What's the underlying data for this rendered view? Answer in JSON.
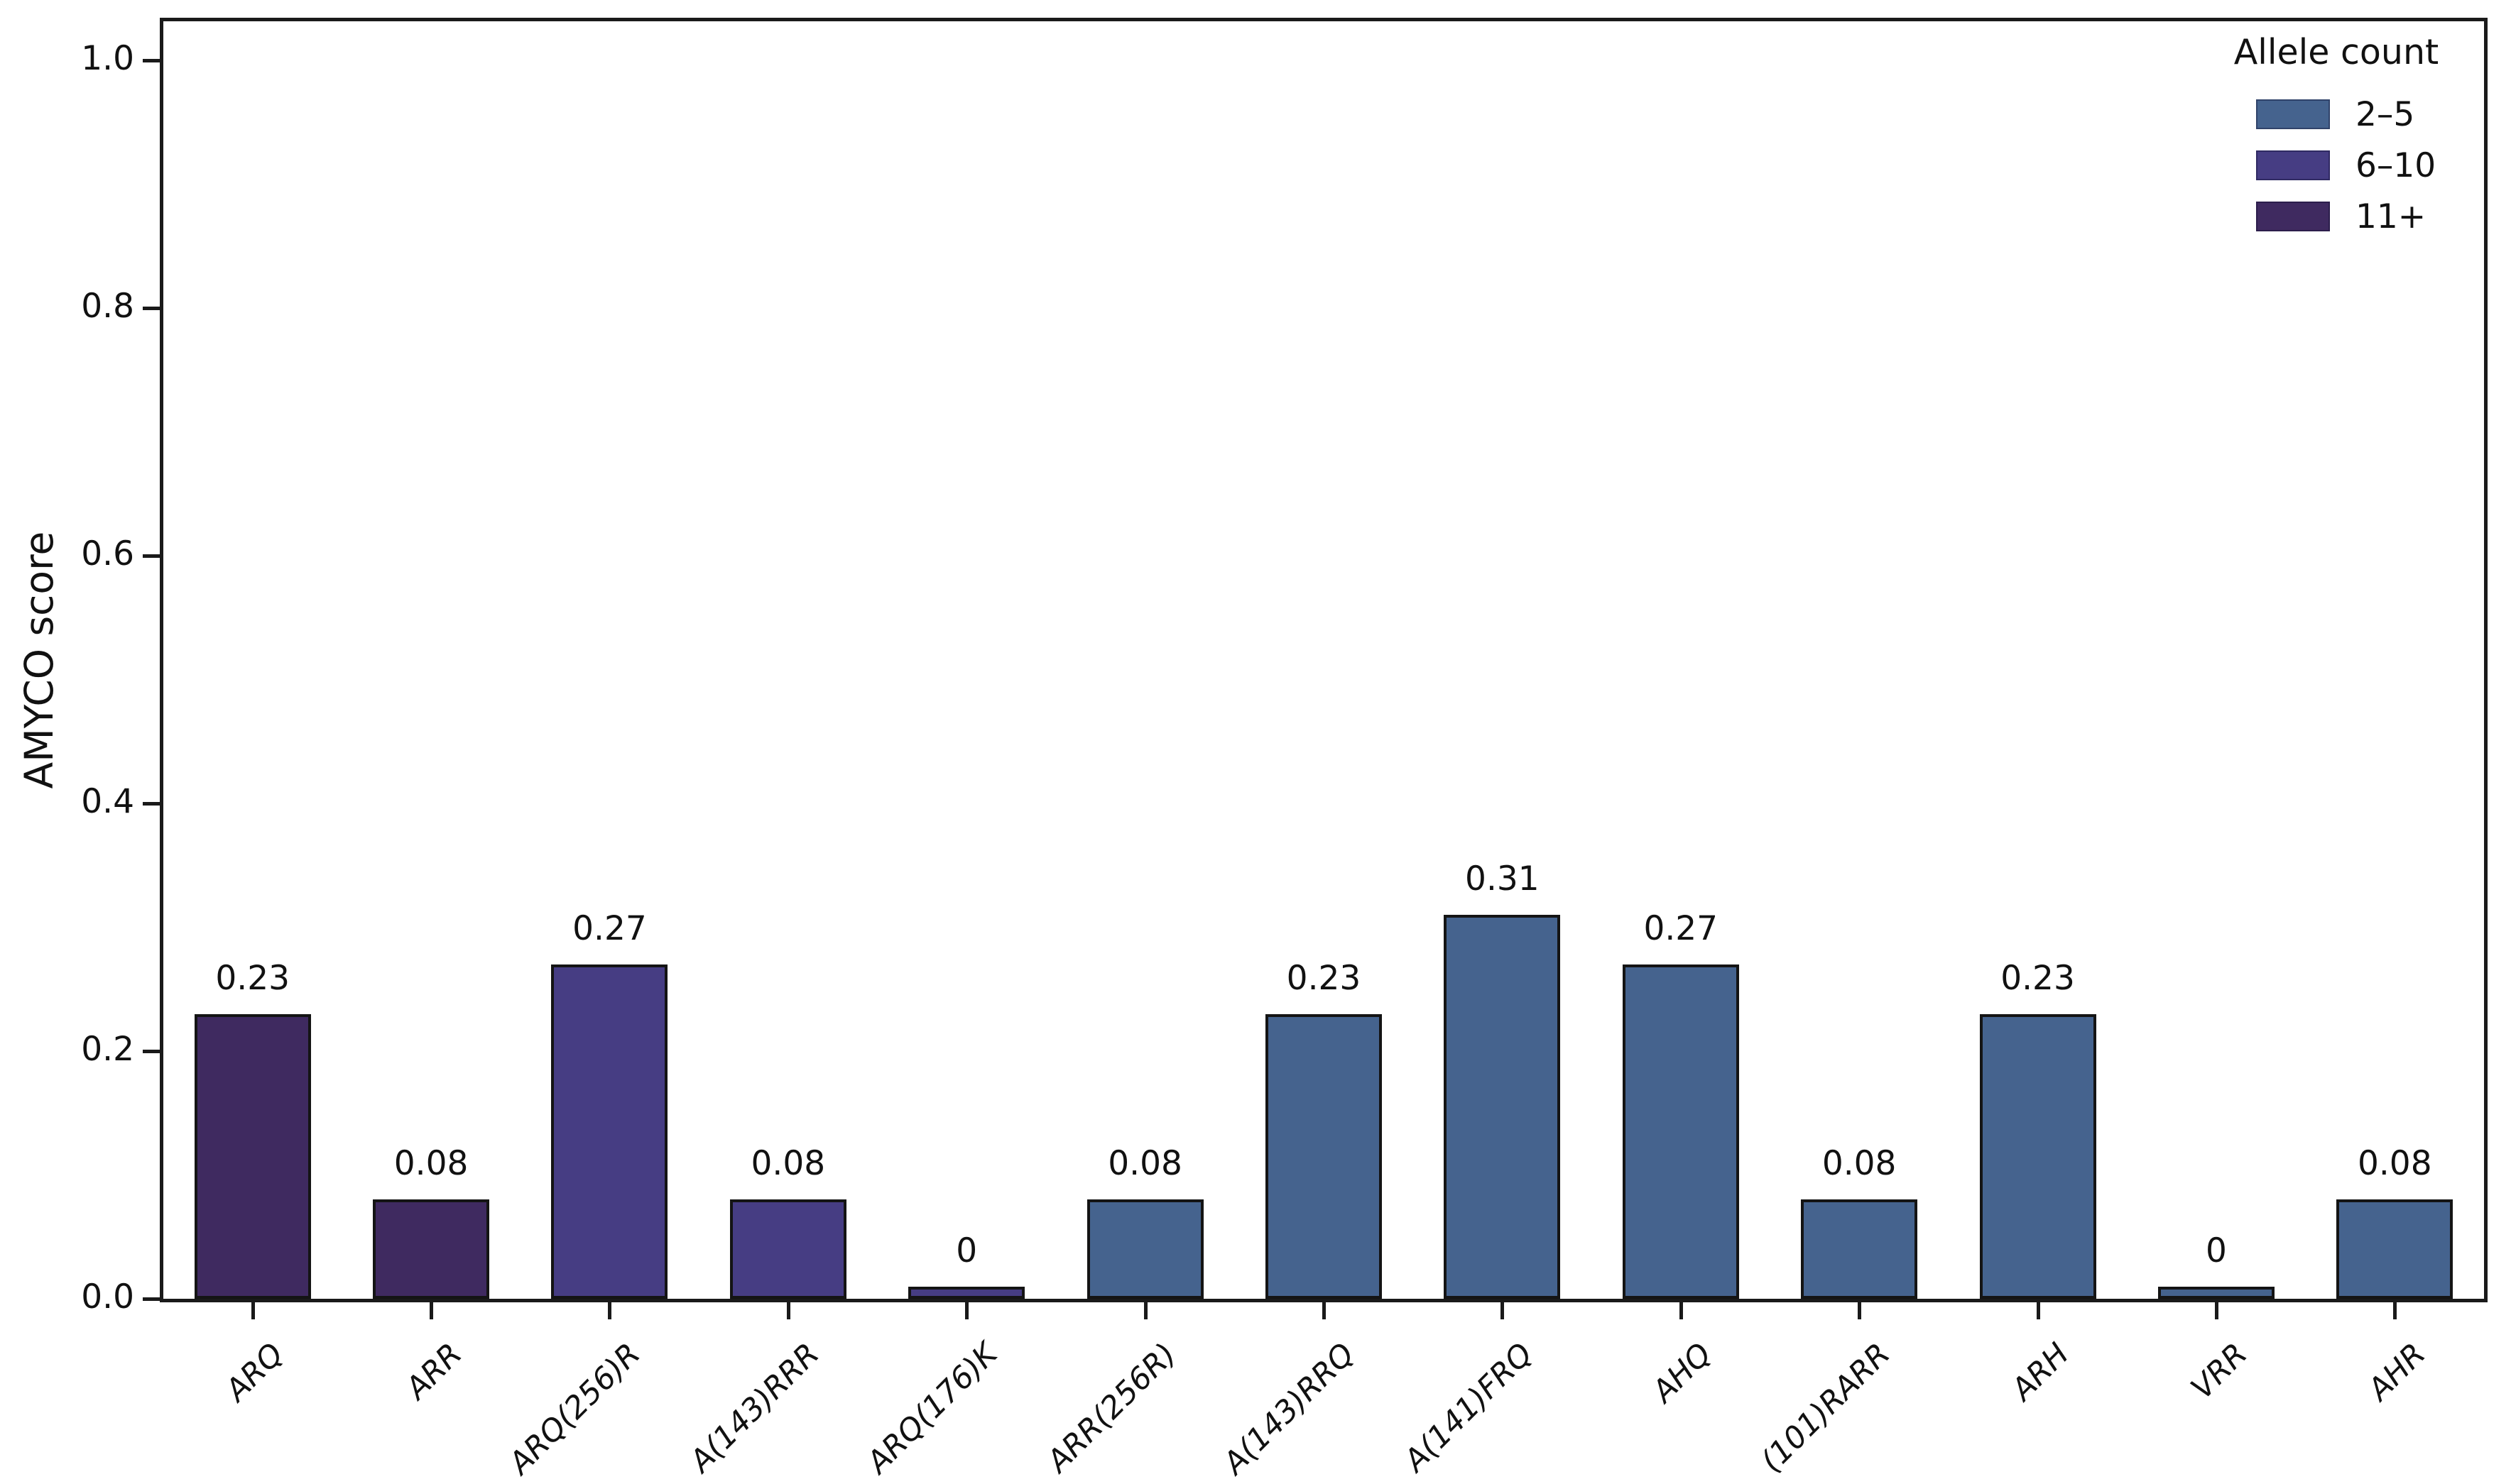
{
  "chart_data": {
    "type": "bar",
    "title": "",
    "xlabel": "",
    "ylabel": "AMYCO score",
    "ylim": [
      0,
      1.035
    ],
    "grid": false,
    "yticks": [
      {
        "value": 0.0,
        "label": "0.0"
      },
      {
        "value": 0.2,
        "label": "0.2"
      },
      {
        "value": 0.4,
        "label": "0.4"
      },
      {
        "value": 0.6,
        "label": "0.6"
      },
      {
        "value": 0.8,
        "label": "0.8"
      },
      {
        "value": 1.0,
        "label": "1.0"
      }
    ],
    "categories": [
      "ARQ",
      "ARR",
      "ARQ(256)R",
      "A(143)RRR",
      "ARQ(176)K",
      "ARR(256R)",
      "A(143)RRQ",
      "A(141)FRQ",
      "AHQ",
      "(101)RARR",
      "ARH",
      "VRR",
      "AHR"
    ],
    "values": [
      0.23,
      0.08,
      0.27,
      0.08,
      0,
      0.08,
      0.23,
      0.31,
      0.27,
      0.08,
      0.23,
      0,
      0.08
    ],
    "value_labels": [
      "0.23",
      "0.08",
      "0.27",
      "0.08",
      "0",
      "0.08",
      "0.23",
      "0.31",
      "0.27",
      "0.08",
      "0.23",
      "0",
      "0.08"
    ],
    "bar_groups": [
      "11+",
      "11+",
      "6–10",
      "6–10",
      "6–10",
      "2–5",
      "2–5",
      "2–5",
      "2–5",
      "2–5",
      "2–5",
      "2–5",
      "2–5"
    ],
    "legend": {
      "title": "Allele count",
      "position": "upper right",
      "entries": [
        {
          "label": "2–5",
          "color": "#45638E"
        },
        {
          "label": "6–10",
          "color": "#463D83"
        },
        {
          "label": "11+",
          "color": "#3F2A60"
        }
      ]
    },
    "colors": {
      "bar_edge": "#141414",
      "axis": "#1a1a1a",
      "background": "#ffffff"
    }
  }
}
